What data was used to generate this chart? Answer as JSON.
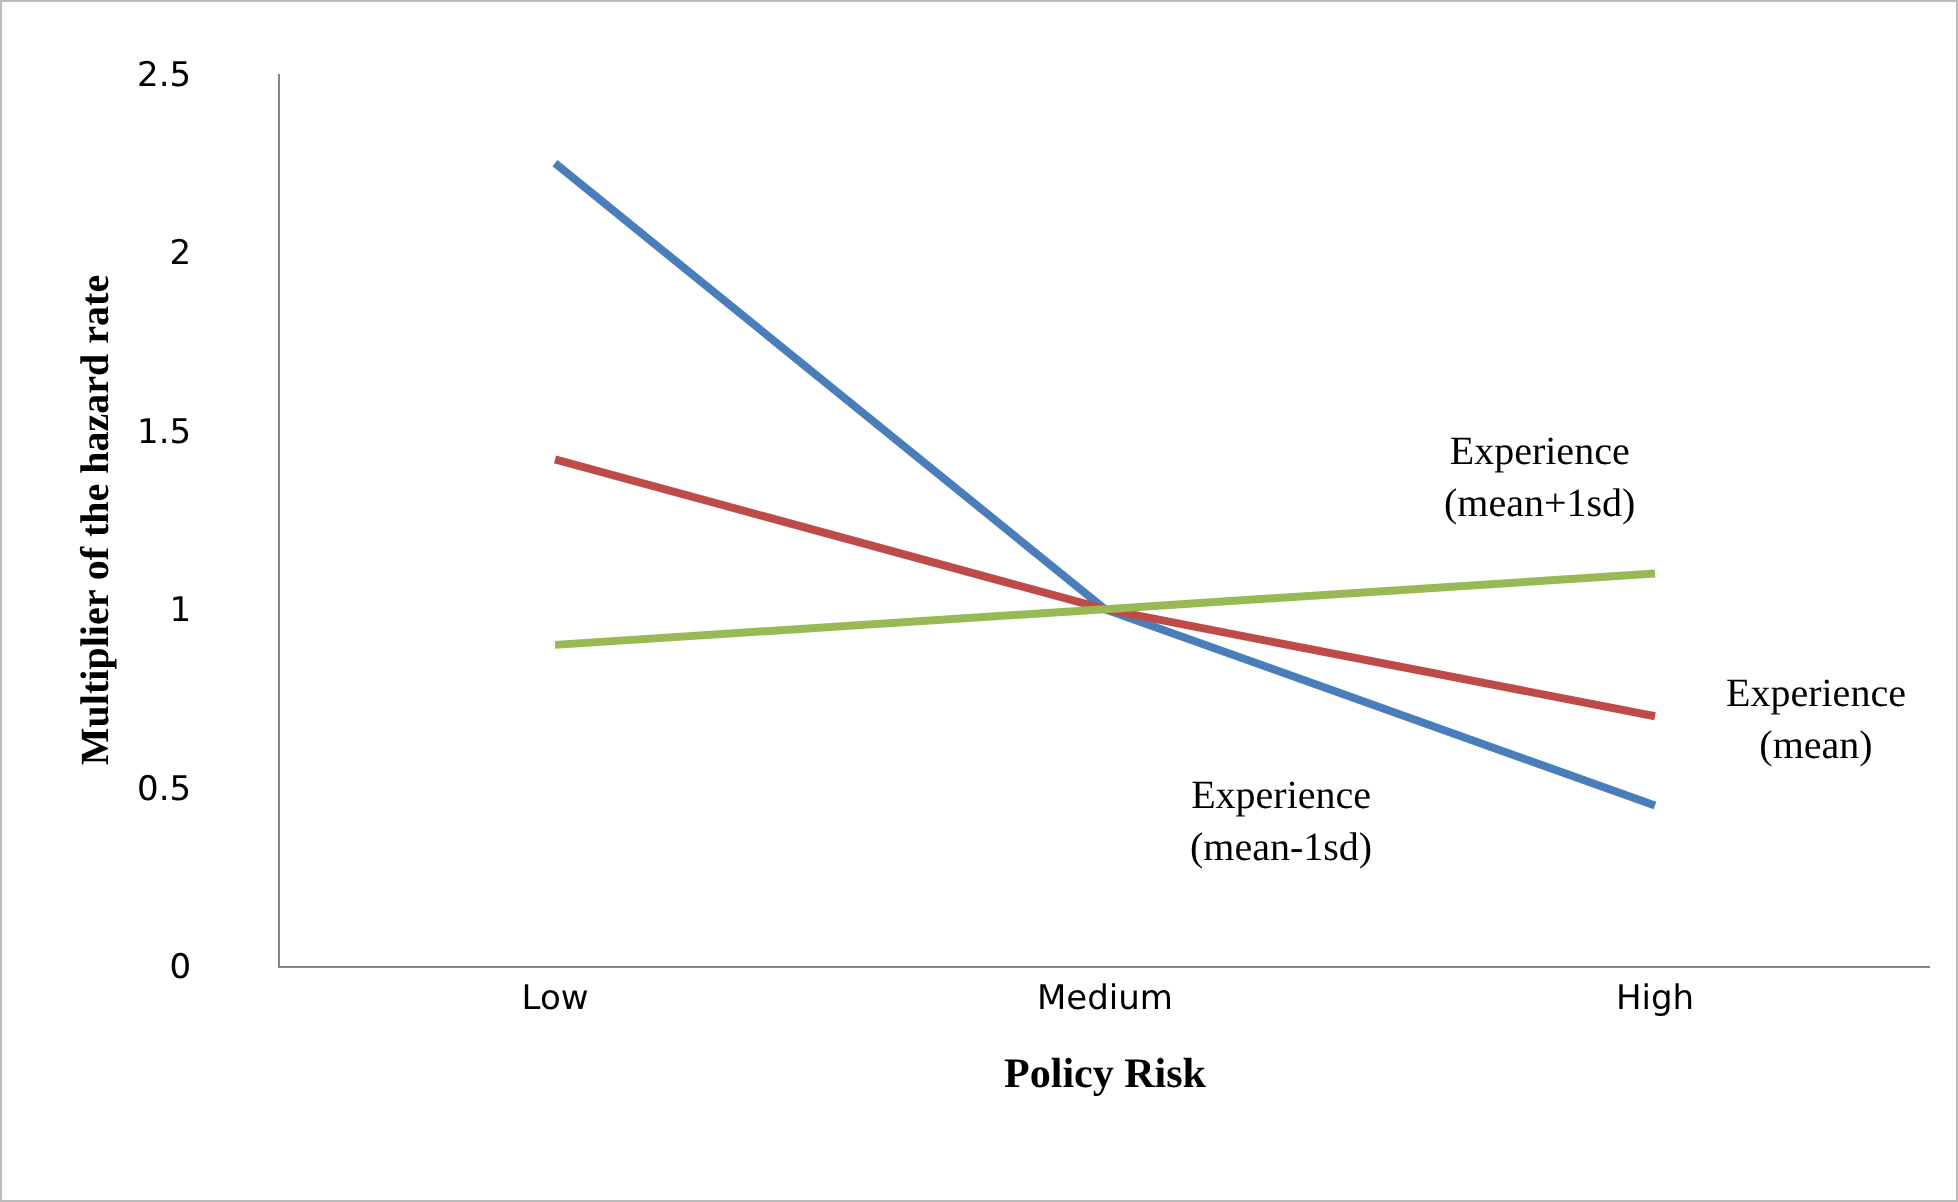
{
  "chart_data": {
    "type": "line",
    "xlabel": "Policy Risk",
    "ylabel": "Multiplier of the hazard rate",
    "categories": [
      "Low",
      "Medium",
      "High"
    ],
    "series": [
      {
        "name": "Experience\n(mean-1sd)",
        "color": "#4a7ebb",
        "values": [
          2.25,
          1.0,
          0.45
        ]
      },
      {
        "name": "Experience\n(mean)",
        "color": "#be4b48",
        "values": [
          1.42,
          1.0,
          0.7
        ]
      },
      {
        "name": "Experience\n(mean+1sd)",
        "color": "#98b954",
        "values": [
          0.9,
          1.0,
          1.1
        ]
      }
    ],
    "ylim": [
      0,
      2.5
    ],
    "yticks": [
      0,
      0.5,
      1,
      1.5,
      2,
      2.5
    ],
    "grid": false,
    "legend": false,
    "marker": "none",
    "line_style": "solid"
  }
}
